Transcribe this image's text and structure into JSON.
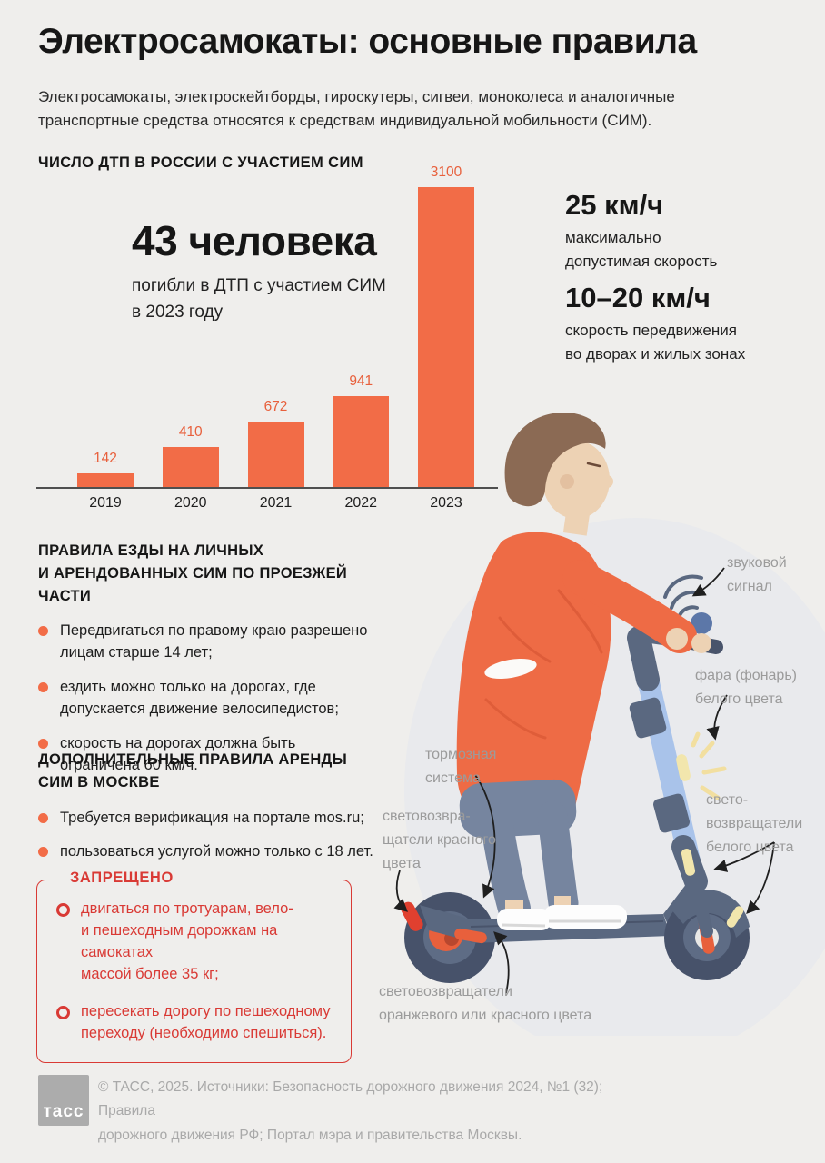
{
  "page": {
    "title": "Электросамокаты: основные правила",
    "subtitle": "Электросамокаты, электроскейтборды, гироскутеры, сигвеи, моноколеса и аналогичные\nтранспортные средства относятся к средствам индивидуальной мобильности (СИМ)."
  },
  "chart_data": {
    "type": "bar",
    "title": "ЧИСЛО ДТП В РОССИИ С УЧАСТИЕМ СИМ",
    "categories": [
      "2019",
      "2020",
      "2021",
      "2022",
      "2023"
    ],
    "values": [
      142,
      410,
      672,
      941,
      3100
    ],
    "xlabel": "",
    "ylabel": "",
    "ylim": [
      0,
      3100
    ],
    "grid": false,
    "bar_color": "#F26C47",
    "value_labels": true,
    "legend": "none"
  },
  "stat": {
    "value": "43 человека",
    "caption": "погибли в ДТП с участием СИМ\nв 2023 году"
  },
  "speeds": [
    {
      "value": "25 км/ч",
      "caption": "максимально\nдопустимая скорость"
    },
    {
      "value": "10–20 км/ч",
      "caption": "скорость передвижения\nво дворах и жилых зонах"
    }
  ],
  "rules_road": {
    "title": "ПРАВИЛА ЕЗДЫ НА ЛИЧНЫХ\nИ АРЕНДОВАННЫХ СИМ ПО ПРОЕЗЖЕЙ ЧАСТИ",
    "items": [
      "Передвигаться по правому краю разрешено\nлицам старше 14 лет;",
      "ездить можно только на дорогах, где\nдопускается движение велосипедистов;",
      "скорость на дорогах должна быть\nограничена 60 км/ч."
    ]
  },
  "rules_moscow": {
    "title": "ДОПОЛНИТЕЛЬНЫЕ ПРАВИЛА АРЕНДЫ\nСИМ В МОСКВЕ",
    "items": [
      "Требуется верификация на портале mos.ru;",
      "пользоваться услугой можно только с 18 лет."
    ]
  },
  "forbidden": {
    "title": "ЗАПРЕЩЕНО",
    "items": [
      "двигаться по тротуарам, вело-\nи пешеходным дорожкам на самокатах\nмассой более 35 кг;",
      "пересекать дорогу по пешеходному\nпереходу (необходимо спешиться)."
    ]
  },
  "annotations": [
    {
      "text": "звуковой\nсигнал"
    },
    {
      "text": "фара (фонарь)\nбелого цвета"
    },
    {
      "text": "тормозная\nсистема"
    },
    {
      "text": "световозвра-\nщатели красного\nцвета"
    },
    {
      "text": "свето-\nвозвращатели\nбелого цвета"
    },
    {
      "text": "световозвращатели\nоранжевого или красного цвета"
    }
  ],
  "footer": {
    "logo": "тасс",
    "text": "© ТАСС, 2025. Источники: Безопасность дорожного движения 2024, №1 (32); Правила\nдорожного движения РФ; Портал мэра и правительства Москвы."
  },
  "colors": {
    "accent": "#F26C47",
    "forbidden_red": "#D93A35",
    "background": "#EFEEEC",
    "label_gray": "#9B9B9B"
  }
}
